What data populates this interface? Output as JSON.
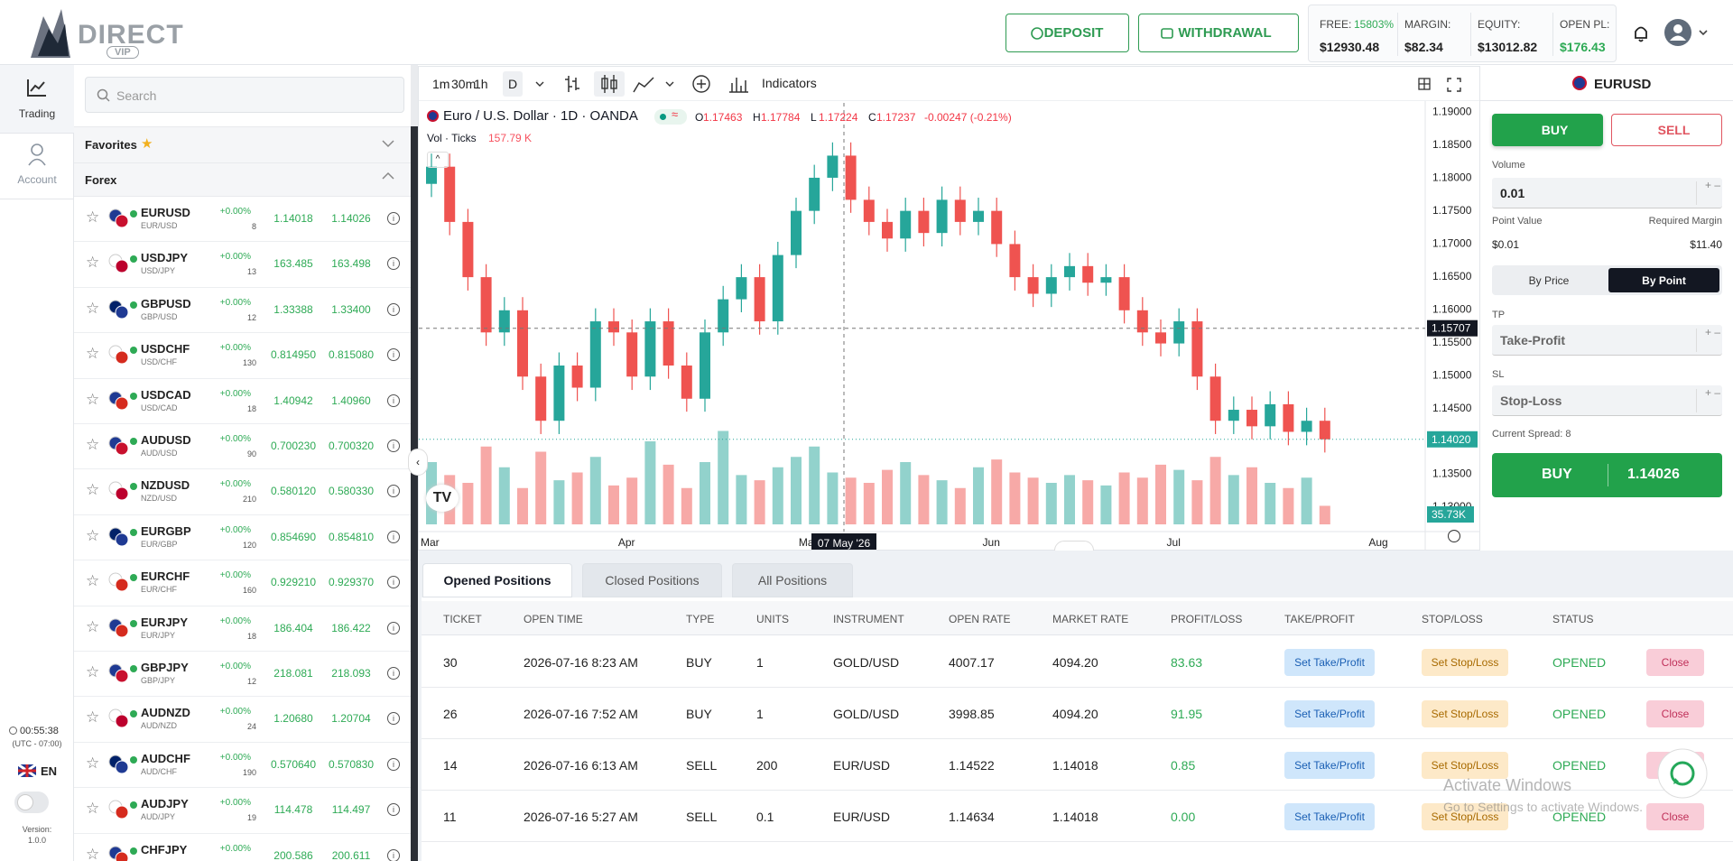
{
  "header": {
    "logo": "DIRECT",
    "logo_sub": "VIP",
    "deposit": "DEPOSIT",
    "withdrawal": "WITHDRAWAL",
    "stats": [
      {
        "label": "FREE:",
        "extra": "15803%",
        "value": "$12930.48"
      },
      {
        "label": "MARGIN:",
        "value": "$82.34"
      },
      {
        "label": "EQUITY:",
        "value": "$13012.82"
      },
      {
        "label": "OPEN PL:",
        "value": "$176.43"
      }
    ]
  },
  "nav": [
    {
      "label": "Trading"
    },
    {
      "label": "Account"
    }
  ],
  "footer": {
    "time": "00:55:38",
    "tz": "(UTC - 07:00)",
    "lang": "EN",
    "version_label": "Version:",
    "version": "1.0.0"
  },
  "watchlist": {
    "search": "Search",
    "favorites": "Favorites",
    "group": "Forex",
    "rows": [
      {
        "symbol": "EURUSD",
        "pair": "EUR/USD",
        "change": "+0.00%",
        "spread": "8",
        "bid": "1.14018",
        "ask": "1.14026"
      },
      {
        "symbol": "USDJPY",
        "pair": "USD/JPY",
        "change": "+0.00%",
        "spread": "13",
        "bid": "163.485",
        "ask": "163.498"
      },
      {
        "symbol": "GBPUSD",
        "pair": "GBP/USD",
        "change": "+0.00%",
        "spread": "12",
        "bid": "1.33388",
        "ask": "1.33400"
      },
      {
        "symbol": "USDCHF",
        "pair": "USD/CHF",
        "change": "+0.00%",
        "spread": "130",
        "bid": "0.814950",
        "ask": "0.815080"
      },
      {
        "symbol": "USDCAD",
        "pair": "USD/CAD",
        "change": "+0.00%",
        "spread": "18",
        "bid": "1.40942",
        "ask": "1.40960"
      },
      {
        "symbol": "AUDUSD",
        "pair": "AUD/USD",
        "change": "+0.00%",
        "spread": "90",
        "bid": "0.700230",
        "ask": "0.700320"
      },
      {
        "symbol": "NZDUSD",
        "pair": "NZD/USD",
        "change": "+0.00%",
        "spread": "210",
        "bid": "0.580120",
        "ask": "0.580330"
      },
      {
        "symbol": "EURGBP",
        "pair": "EUR/GBP",
        "change": "+0.00%",
        "spread": "120",
        "bid": "0.854690",
        "ask": "0.854810"
      },
      {
        "symbol": "EURCHF",
        "pair": "EUR/CHF",
        "change": "+0.00%",
        "spread": "160",
        "bid": "0.929210",
        "ask": "0.929370"
      },
      {
        "symbol": "EURJPY",
        "pair": "EUR/JPY",
        "change": "+0.00%",
        "spread": "18",
        "bid": "186.404",
        "ask": "186.422"
      },
      {
        "symbol": "GBPJPY",
        "pair": "GBP/JPY",
        "change": "+0.00%",
        "spread": "12",
        "bid": "218.081",
        "ask": "218.093"
      },
      {
        "symbol": "AUDNZD",
        "pair": "AUD/NZD",
        "change": "+0.00%",
        "spread": "24",
        "bid": "1.20680",
        "ask": "1.20704"
      },
      {
        "symbol": "AUDCHF",
        "pair": "AUD/CHF",
        "change": "+0.00%",
        "spread": "190",
        "bid": "0.570640",
        "ask": "0.570830"
      },
      {
        "symbol": "AUDJPY",
        "pair": "AUD/JPY",
        "change": "+0.00%",
        "spread": "19",
        "bid": "114.478",
        "ask": "114.497"
      },
      {
        "symbol": "CHFJPY",
        "change": "+0.00%",
        "bid": "200.586",
        "ask": "200.611"
      }
    ]
  },
  "toolbar": {
    "intervals": [
      "1m",
      "30m",
      "1h",
      "D"
    ],
    "indicators": "Indicators"
  },
  "chart_data": {
    "type": "candlestick",
    "title": "Euro / U.S. Dollar · 1D · OANDA",
    "legend": [
      {
        "k": "O",
        "v": "1.17463"
      },
      {
        "k": "H",
        "v": "1.17784"
      },
      {
        "k": "L",
        "v": "1.17224"
      },
      {
        "k": "C",
        "v": "1.17237"
      }
    ],
    "legend_change": "-0.00247 (-0.21%)",
    "volume_title": "Vol · Ticks",
    "volume_value": "157.79 K",
    "categories": [
      "Mar",
      null,
      null,
      null,
      null,
      null,
      null,
      null,
      null,
      null,
      null,
      "Apr",
      null,
      null,
      null,
      null,
      null,
      null,
      null,
      null,
      null,
      "May",
      null,
      null,
      null,
      null,
      null,
      null,
      null,
      null,
      null,
      "Jun",
      null,
      null,
      null,
      null,
      null,
      null,
      null,
      null,
      null,
      "Jul",
      null,
      null,
      null,
      null,
      null,
      null,
      null,
      null
    ],
    "x_end_label": "Aug",
    "open": [
      1.179,
      1.18161,
      1.17322,
      1.16483,
      1.15644,
      1.1598,
      1.14973,
      1.14302,
      1.15141,
      1.14805,
      1.15812,
      1.15644,
      1.14973,
      1.15812,
      1.15141,
      1.14637,
      1.15644,
      1.16147,
      1.16483,
      1.15812,
      1.16819,
      1.1749,
      1.17993,
      1.18329,
      1.17658,
      1.17322,
      1.1707,
      1.1749,
      1.17154,
      1.17658,
      1.17322,
      1.1749,
      1.16986,
      1.16483,
      1.16231,
      1.16483,
      1.16651,
      1.16399,
      1.16483,
      1.1598,
      1.15644,
      1.15476,
      1.15812,
      1.14973,
      1.14302,
      1.14469,
      1.14218,
      1.14553,
      1.14134,
      1.14302
    ],
    "high": [
      1.1836,
      1.1836,
      1.1752,
      1.1668,
      1.1618,
      1.1618,
      1.1517,
      1.1534,
      1.1534,
      1.1601,
      1.1601,
      1.1584,
      1.1601,
      1.1601,
      1.1534,
      1.1584,
      1.1635,
      1.1668,
      1.1668,
      1.1702,
      1.1769,
      1.1819,
      1.1853,
      1.1853,
      1.1786,
      1.1752,
      1.1769,
      1.1769,
      1.1786,
      1.1786,
      1.1769,
      1.1769,
      1.1719,
      1.1668,
      1.1668,
      1.1685,
      1.1685,
      1.1668,
      1.1668,
      1.1618,
      1.1584,
      1.1601,
      1.1601,
      1.1517,
      1.1467,
      1.1467,
      1.1475,
      1.1475,
      1.145,
      1.145
    ],
    "low": [
      1.177,
      1.1712,
      1.1628,
      1.1544,
      1.1544,
      1.1477,
      1.141,
      1.141,
      1.146,
      1.146,
      1.1544,
      1.1477,
      1.1477,
      1.1494,
      1.1444,
      1.1444,
      1.1544,
      1.1595,
      1.1561,
      1.1561,
      1.1662,
      1.1729,
      1.1779,
      1.1746,
      1.1712,
      1.1687,
      1.1687,
      1.1695,
      1.1695,
      1.1712,
      1.1712,
      1.1679,
      1.1628,
      1.1603,
      1.1603,
      1.1628,
      1.162,
      1.162,
      1.1578,
      1.1544,
      1.1528,
      1.1528,
      1.1477,
      1.141,
      1.141,
      1.1402,
      1.1402,
      1.1393,
      1.1393,
      1.1382
    ],
    "close": [
      1.18161,
      1.17322,
      1.16483,
      1.15644,
      1.1598,
      1.14973,
      1.14302,
      1.15141,
      1.14805,
      1.15812,
      1.15644,
      1.14973,
      1.15812,
      1.15141,
      1.14637,
      1.15644,
      1.16147,
      1.16483,
      1.15812,
      1.16819,
      1.1749,
      1.17993,
      1.18329,
      1.17658,
      1.17322,
      1.1707,
      1.1749,
      1.17154,
      1.17658,
      1.17322,
      1.1749,
      1.16986,
      1.16483,
      1.16231,
      1.16483,
      1.16651,
      1.16399,
      1.16483,
      1.1598,
      1.15644,
      1.15476,
      1.15812,
      1.14973,
      1.14302,
      1.14469,
      1.14218,
      1.14553,
      1.14134,
      1.14302,
      1.1402
    ],
    "volume": [
      120000,
      95000,
      80000,
      150000,
      110000,
      70000,
      140000,
      85000,
      100000,
      130000,
      75000,
      90000,
      160000,
      115000,
      70000,
      120000,
      180000,
      95000,
      85000,
      110000,
      130000,
      150000,
      100000,
      90000,
      80000,
      105000,
      120000,
      95000,
      85000,
      70000,
      110000,
      125000,
      100000,
      90000,
      80000,
      95000,
      85000,
      75000,
      100000,
      90000,
      115000,
      105000,
      85000,
      130000,
      95000,
      110000,
      80000,
      70000,
      90000,
      35730
    ],
    "last_volume_label": "35.73K",
    "up_color": "#26a69a",
    "down_color": "#ef5350",
    "ylim": [
      1.1266,
      1.1913
    ],
    "volume_lim": [
      0,
      200000
    ],
    "grid": false,
    "yticks": [
      {
        "value": 1.19,
        "label": "1.19000"
      },
      {
        "value": 1.185,
        "label": "1.18500"
      },
      {
        "value": 1.18,
        "label": "1.18000"
      },
      {
        "value": 1.175,
        "label": "1.17500"
      },
      {
        "value": 1.17,
        "label": "1.17000"
      },
      {
        "value": 1.165,
        "label": "1.16500"
      },
      {
        "value": 1.16,
        "label": "1.16000"
      },
      {
        "value": 1.155,
        "label": "1.15500"
      },
      {
        "value": 1.15,
        "label": "1.15000"
      },
      {
        "value": 1.145,
        "label": "1.14500"
      },
      {
        "value": 1.14,
        "label": "1.14000"
      },
      {
        "value": 1.135,
        "label": "1.13500"
      },
      {
        "value": 1.13,
        "label": "1.13000"
      }
    ],
    "crosshair": {
      "date": "07 May '26",
      "price": {
        "value": 1.15707,
        "label": "1.15707"
      }
    },
    "last_price": {
      "value": 1.1402,
      "label": "1.14020"
    }
  },
  "order": {
    "symbol": "EURUSD",
    "buy": "BUY",
    "sell": "SELL",
    "volume_label": "Volume",
    "volume": "0.01",
    "point_value_label": "Point Value",
    "required_margin_label": "Required Margin",
    "point_value": "$0.01",
    "required_margin": "$11.40",
    "by_price": "By Price",
    "by_point": "By Point",
    "tp_label": "TP",
    "tp": "Take-Profit",
    "sl_label": "SL",
    "sl": "Stop-Loss",
    "spread": "Current Spread: 8",
    "submit": "BUY",
    "submit_price": "1.14026"
  },
  "positions": {
    "tabs": [
      "Opened Positions",
      "Closed Positions",
      "All Positions"
    ],
    "columns": [
      "TICKET",
      "OPEN TIME",
      "TYPE",
      "UNITS",
      "INSTRUMENT",
      "OPEN RATE",
      "MARKET RATE",
      "PROFIT/LOSS",
      "TAKE/PROFIT",
      "STOP/LOSS",
      "STATUS"
    ],
    "rows": [
      [
        "30",
        "2026-07-16 8:23 AM",
        "BUY",
        "1",
        "GOLD/USD",
        "4007.17",
        "4094.20",
        "83.63",
        "Set Take/Profit",
        "Set Stop/Loss",
        "OPENED",
        "Close"
      ],
      [
        "26",
        "2026-07-16 7:52 AM",
        "BUY",
        "1",
        "GOLD/USD",
        "3998.85",
        "4094.20",
        "91.95",
        "Set Take/Profit",
        "Set Stop/Loss",
        "OPENED",
        "Close"
      ],
      [
        "14",
        "2026-07-16 6:13 AM",
        "SELL",
        "200",
        "EUR/USD",
        "1.14522",
        "1.14018",
        "0.85",
        "Set Take/Profit",
        "Set Stop/Loss",
        "OPENED",
        "Close"
      ],
      [
        "11",
        "2026-07-16 5:27 AM",
        "SELL",
        "0.1",
        "EUR/USD",
        "1.14634",
        "1.14018",
        "0.00",
        "Set Take/Profit",
        "Set Stop/Loss",
        "OPENED",
        "Close"
      ]
    ]
  },
  "watermark": {
    "title": "Activate Windows",
    "text": "Go to Settings to activate Windows."
  }
}
